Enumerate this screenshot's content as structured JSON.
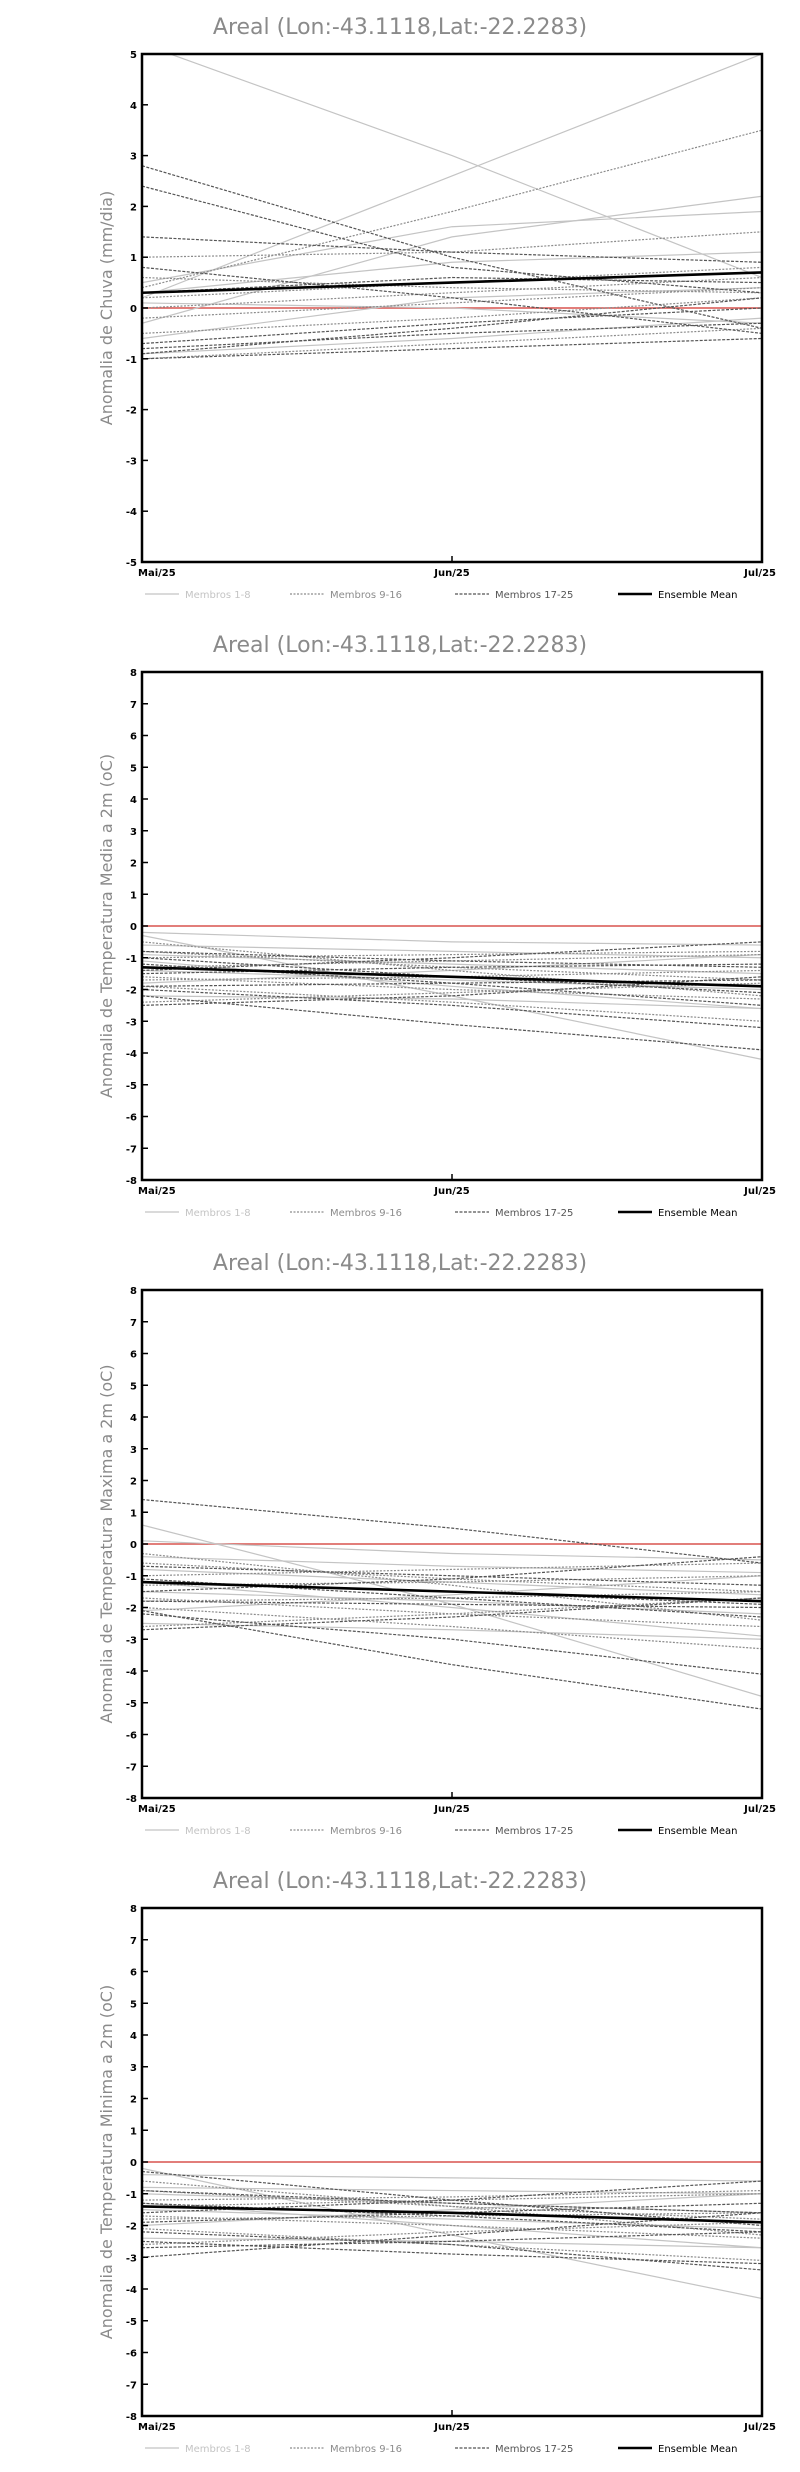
{
  "chart_data": [
    {
      "type": "line",
      "title": "Areal (Lon:-43.1118,Lat:-22.2283)",
      "ylabel": "Anomalia de Chuva (mm/dia)",
      "x": [
        "Mai/25",
        "Jun/25",
        "Jul/25"
      ],
      "ylim": [
        -5,
        5
      ],
      "yticks": [
        -5,
        -4,
        -3,
        -2,
        -1,
        0,
        1,
        2,
        3,
        4,
        5
      ],
      "legend": [
        "Membros 1-8",
        "Membros 9-16",
        "Membros 17-25",
        "Ensemble Mean"
      ],
      "legend_placement": "bottom",
      "zero_line_color": "#d9534f",
      "series": [
        {
          "group": 1,
          "values": [
            5.2,
            3.0,
            0.6
          ]
        },
        {
          "group": 1,
          "values": [
            0.2,
            2.6,
            5.0
          ]
        },
        {
          "group": 1,
          "values": [
            -0.3,
            1.4,
            2.2
          ]
        },
        {
          "group": 1,
          "values": [
            0.5,
            1.6,
            1.9
          ]
        },
        {
          "group": 1,
          "values": [
            -0.6,
            0.2,
            0.4
          ]
        },
        {
          "group": 1,
          "values": [
            0.1,
            0.0,
            -0.3
          ]
        },
        {
          "group": 1,
          "values": [
            -0.9,
            -0.6,
            -0.2
          ]
        },
        {
          "group": 1,
          "values": [
            0.3,
            0.9,
            1.1
          ]
        },
        {
          "group": 2,
          "values": [
            0.4,
            1.9,
            3.5
          ]
        },
        {
          "group": 2,
          "values": [
            1.0,
            1.1,
            1.5
          ]
        },
        {
          "group": 2,
          "values": [
            -0.5,
            -0.2,
            0.2
          ]
        },
        {
          "group": 2,
          "values": [
            0.2,
            0.5,
            0.8
          ]
        },
        {
          "group": 2,
          "values": [
            -1.0,
            -0.7,
            -0.4
          ]
        },
        {
          "group": 2,
          "values": [
            0.6,
            0.4,
            0.3
          ]
        },
        {
          "group": 2,
          "values": [
            -0.2,
            0.1,
            0.4
          ]
        },
        {
          "group": 2,
          "values": [
            0.0,
            0.3,
            0.6
          ]
        },
        {
          "group": 3,
          "values": [
            2.8,
            1.0,
            -0.4
          ]
        },
        {
          "group": 3,
          "values": [
            2.4,
            0.8,
            0.3
          ]
        },
        {
          "group": 3,
          "values": [
            1.4,
            1.1,
            0.9
          ]
        },
        {
          "group": 3,
          "values": [
            -0.8,
            -0.5,
            -0.3
          ]
        },
        {
          "group": 3,
          "values": [
            -0.9,
            -0.4,
            0.2
          ]
        },
        {
          "group": 3,
          "values": [
            0.8,
            0.2,
            -0.5
          ]
        },
        {
          "group": 3,
          "values": [
            -1.0,
            -0.8,
            -0.6
          ]
        },
        {
          "group": 3,
          "values": [
            0.3,
            0.6,
            0.5
          ]
        },
        {
          "group": 3,
          "values": [
            -0.7,
            -0.3,
            0.0
          ]
        },
        {
          "group": 4,
          "values": [
            0.3,
            0.5,
            0.7
          ]
        }
      ]
    },
    {
      "type": "line",
      "title": "Areal (Lon:-43.1118,Lat:-22.2283)",
      "ylabel": "Anomalia de Temperatura Media a 2m (oC)",
      "x": [
        "Mai/25",
        "Jun/25",
        "Jul/25"
      ],
      "ylim": [
        -8,
        8
      ],
      "yticks": [
        -8,
        -7,
        -6,
        -5,
        -4,
        -3,
        -2,
        -1,
        0,
        1,
        2,
        3,
        4,
        5,
        6,
        7,
        8
      ],
      "legend": [
        "Membros 1-8",
        "Membros 9-16",
        "Membros 17-25",
        "Ensemble Mean"
      ],
      "legend_placement": "bottom",
      "zero_line_color": "#d9534f",
      "series": [
        {
          "group": 1,
          "values": [
            -0.3,
            -2.2,
            -4.2
          ]
        },
        {
          "group": 1,
          "values": [
            -0.6,
            -0.8,
            -1.0
          ]
        },
        {
          "group": 1,
          "values": [
            -1.1,
            -1.9,
            -2.6
          ]
        },
        {
          "group": 1,
          "values": [
            -1.8,
            -1.4,
            -0.9
          ]
        },
        {
          "group": 1,
          "values": [
            -0.2,
            -0.5,
            -0.6
          ]
        },
        {
          "group": 1,
          "values": [
            -2.2,
            -2.3,
            -2.6
          ]
        },
        {
          "group": 1,
          "values": [
            -1.4,
            -1.7,
            -2.0
          ]
        },
        {
          "group": 1,
          "values": [
            -0.9,
            -1.2,
            -1.5
          ]
        },
        {
          "group": 2,
          "values": [
            -1.6,
            -2.0,
            -2.3
          ]
        },
        {
          "group": 2,
          "values": [
            -0.8,
            -1.3,
            -1.7
          ]
        },
        {
          "group": 2,
          "values": [
            -2.4,
            -2.1,
            -1.8
          ]
        },
        {
          "group": 2,
          "values": [
            -1.0,
            -0.9,
            -0.8
          ]
        },
        {
          "group": 2,
          "values": [
            -1.9,
            -2.4,
            -3.0
          ]
        },
        {
          "group": 2,
          "values": [
            -1.3,
            -1.1,
            -0.9
          ]
        },
        {
          "group": 2,
          "values": [
            -0.5,
            -1.4,
            -2.2
          ]
        },
        {
          "group": 2,
          "values": [
            -1.7,
            -1.6,
            -1.4
          ]
        },
        {
          "group": 3,
          "values": [
            -2.2,
            -3.1,
            -3.9
          ]
        },
        {
          "group": 3,
          "values": [
            -1.0,
            -1.6,
            -2.1
          ]
        },
        {
          "group": 3,
          "values": [
            -2.5,
            -2.2,
            -1.6
          ]
        },
        {
          "group": 3,
          "values": [
            -1.4,
            -1.0,
            -0.5
          ]
        },
        {
          "group": 3,
          "values": [
            -0.8,
            -1.1,
            -1.3
          ]
        },
        {
          "group": 3,
          "values": [
            -1.9,
            -1.8,
            -1.7
          ]
        },
        {
          "group": 3,
          "values": [
            -1.2,
            -1.8,
            -2.5
          ]
        },
        {
          "group": 3,
          "values": [
            -2.0,
            -2.5,
            -3.2
          ]
        },
        {
          "group": 3,
          "values": [
            -1.5,
            -1.3,
            -1.2
          ]
        },
        {
          "group": 4,
          "values": [
            -1.3,
            -1.6,
            -1.9
          ]
        }
      ]
    },
    {
      "type": "line",
      "title": "Areal (Lon:-43.1118,Lat:-22.2283)",
      "ylabel": "Anomalia de Temperatura Maxima a 2m (oC)",
      "x": [
        "Mai/25",
        "Jun/25",
        "Jul/25"
      ],
      "ylim": [
        -8,
        8
      ],
      "yticks": [
        -8,
        -7,
        -6,
        -5,
        -4,
        -3,
        -2,
        -1,
        0,
        1,
        2,
        3,
        4,
        5,
        6,
        7,
        8
      ],
      "legend": [
        "Membros 1-8",
        "Membros 9-16",
        "Membros 17-25",
        "Ensemble Mean"
      ],
      "legend_placement": "bottom",
      "zero_line_color": "#d9534f",
      "series": [
        {
          "group": 1,
          "values": [
            0.6,
            -1.9,
            -4.8
          ]
        },
        {
          "group": 1,
          "values": [
            -0.4,
            -0.7,
            -0.9
          ]
        },
        {
          "group": 1,
          "values": [
            -1.2,
            -2.0,
            -2.9
          ]
        },
        {
          "group": 1,
          "values": [
            -2.1,
            -1.6,
            -1.0
          ]
        },
        {
          "group": 1,
          "values": [
            0.1,
            -0.3,
            -0.5
          ]
        },
        {
          "group": 1,
          "values": [
            -2.5,
            -2.7,
            -3.0
          ]
        },
        {
          "group": 1,
          "values": [
            -1.5,
            -1.8,
            -2.2
          ]
        },
        {
          "group": 1,
          "values": [
            -0.8,
            -1.2,
            -1.6
          ]
        },
        {
          "group": 2,
          "values": [
            -1.7,
            -2.2,
            -2.6
          ]
        },
        {
          "group": 2,
          "values": [
            -0.6,
            -1.1,
            -1.5
          ]
        },
        {
          "group": 2,
          "values": [
            -2.6,
            -2.2,
            -1.7
          ]
        },
        {
          "group": 2,
          "values": [
            -1.0,
            -0.8,
            -0.6
          ]
        },
        {
          "group": 2,
          "values": [
            -2.0,
            -2.6,
            -3.3
          ]
        },
        {
          "group": 2,
          "values": [
            -1.3,
            -1.2,
            -1.0
          ]
        },
        {
          "group": 2,
          "values": [
            -0.3,
            -1.3,
            -2.4
          ]
        },
        {
          "group": 2,
          "values": [
            -1.8,
            -1.7,
            -1.5
          ]
        },
        {
          "group": 3,
          "values": [
            1.4,
            0.5,
            -0.6
          ]
        },
        {
          "group": 3,
          "values": [
            -2.1,
            -3.8,
            -5.2
          ]
        },
        {
          "group": 3,
          "values": [
            -1.1,
            -1.7,
            -2.3
          ]
        },
        {
          "group": 3,
          "values": [
            -2.7,
            -2.3,
            -1.7
          ]
        },
        {
          "group": 3,
          "values": [
            -1.5,
            -1.1,
            -0.4
          ]
        },
        {
          "group": 3,
          "values": [
            -0.7,
            -1.0,
            -1.3
          ]
        },
        {
          "group": 3,
          "values": [
            -2.2,
            -3.0,
            -4.1
          ]
        },
        {
          "group": 3,
          "values": [
            -1.8,
            -1.9,
            -2.0
          ]
        },
        {
          "group": 3,
          "values": [
            -1.2,
            -1.5,
            -1.9
          ]
        },
        {
          "group": 4,
          "values": [
            -1.2,
            -1.5,
            -1.8
          ]
        }
      ]
    },
    {
      "type": "line",
      "title": "Areal (Lon:-43.1118,Lat:-22.2283)",
      "ylabel": "Anomalia de Temperatura Minima a 2m (oC)",
      "x": [
        "Mai/25",
        "Jun/25",
        "Jul/25"
      ],
      "ylim": [
        -8,
        8
      ],
      "yticks": [
        -8,
        -7,
        -6,
        -5,
        -4,
        -3,
        -2,
        -1,
        0,
        1,
        2,
        3,
        4,
        5,
        6,
        7,
        8
      ],
      "legend": [
        "Membros 1-8",
        "Membros 9-16",
        "Membros 17-25",
        "Ensemble Mean"
      ],
      "legend_placement": "bottom",
      "zero_line_color": "#d9534f",
      "series": [
        {
          "group": 1,
          "values": [
            -0.2,
            -2.3,
            -4.3
          ]
        },
        {
          "group": 1,
          "values": [
            -0.8,
            -0.9,
            -1.0
          ]
        },
        {
          "group": 1,
          "values": [
            -1.3,
            -2.0,
            -2.7
          ]
        },
        {
          "group": 1,
          "values": [
            -2.0,
            -1.5,
            -1.0
          ]
        },
        {
          "group": 1,
          "values": [
            -0.4,
            -0.5,
            -0.6
          ]
        },
        {
          "group": 1,
          "values": [
            -2.4,
            -2.5,
            -2.7
          ]
        },
        {
          "group": 1,
          "values": [
            -1.5,
            -1.8,
            -2.1
          ]
        },
        {
          "group": 1,
          "values": [
            -1.0,
            -1.3,
            -1.6
          ]
        },
        {
          "group": 2,
          "values": [
            -1.7,
            -2.0,
            -2.4
          ]
        },
        {
          "group": 2,
          "values": [
            -0.9,
            -1.4,
            -1.8
          ]
        },
        {
          "group": 2,
          "values": [
            -2.6,
            -2.2,
            -1.9
          ]
        },
        {
          "group": 2,
          "values": [
            -1.2,
            -1.1,
            -0.9
          ]
        },
        {
          "group": 2,
          "values": [
            -2.1,
            -2.6,
            -3.1
          ]
        },
        {
          "group": 2,
          "values": [
            -1.4,
            -1.2,
            -1.0
          ]
        },
        {
          "group": 2,
          "values": [
            -0.6,
            -1.4,
            -2.3
          ]
        },
        {
          "group": 2,
          "values": [
            -1.8,
            -1.7,
            -1.6
          ]
        },
        {
          "group": 3,
          "values": [
            -3.0,
            -2.3,
            -1.6
          ]
        },
        {
          "group": 3,
          "values": [
            -0.3,
            -1.2,
            -2.0
          ]
        },
        {
          "group": 3,
          "values": [
            -2.7,
            -2.5,
            -2.2
          ]
        },
        {
          "group": 3,
          "values": [
            -1.6,
            -1.2,
            -0.6
          ]
        },
        {
          "group": 3,
          "values": [
            -0.9,
            -1.3,
            -1.6
          ]
        },
        {
          "group": 3,
          "values": [
            -2.2,
            -2.6,
            -3.4
          ]
        },
        {
          "group": 3,
          "values": [
            -1.3,
            -1.7,
            -2.2
          ]
        },
        {
          "group": 3,
          "values": [
            -1.9,
            -1.6,
            -1.3
          ]
        },
        {
          "group": 3,
          "values": [
            -2.5,
            -2.9,
            -3.2
          ]
        },
        {
          "group": 4,
          "values": [
            -1.4,
            -1.6,
            -1.9
          ]
        }
      ]
    }
  ]
}
